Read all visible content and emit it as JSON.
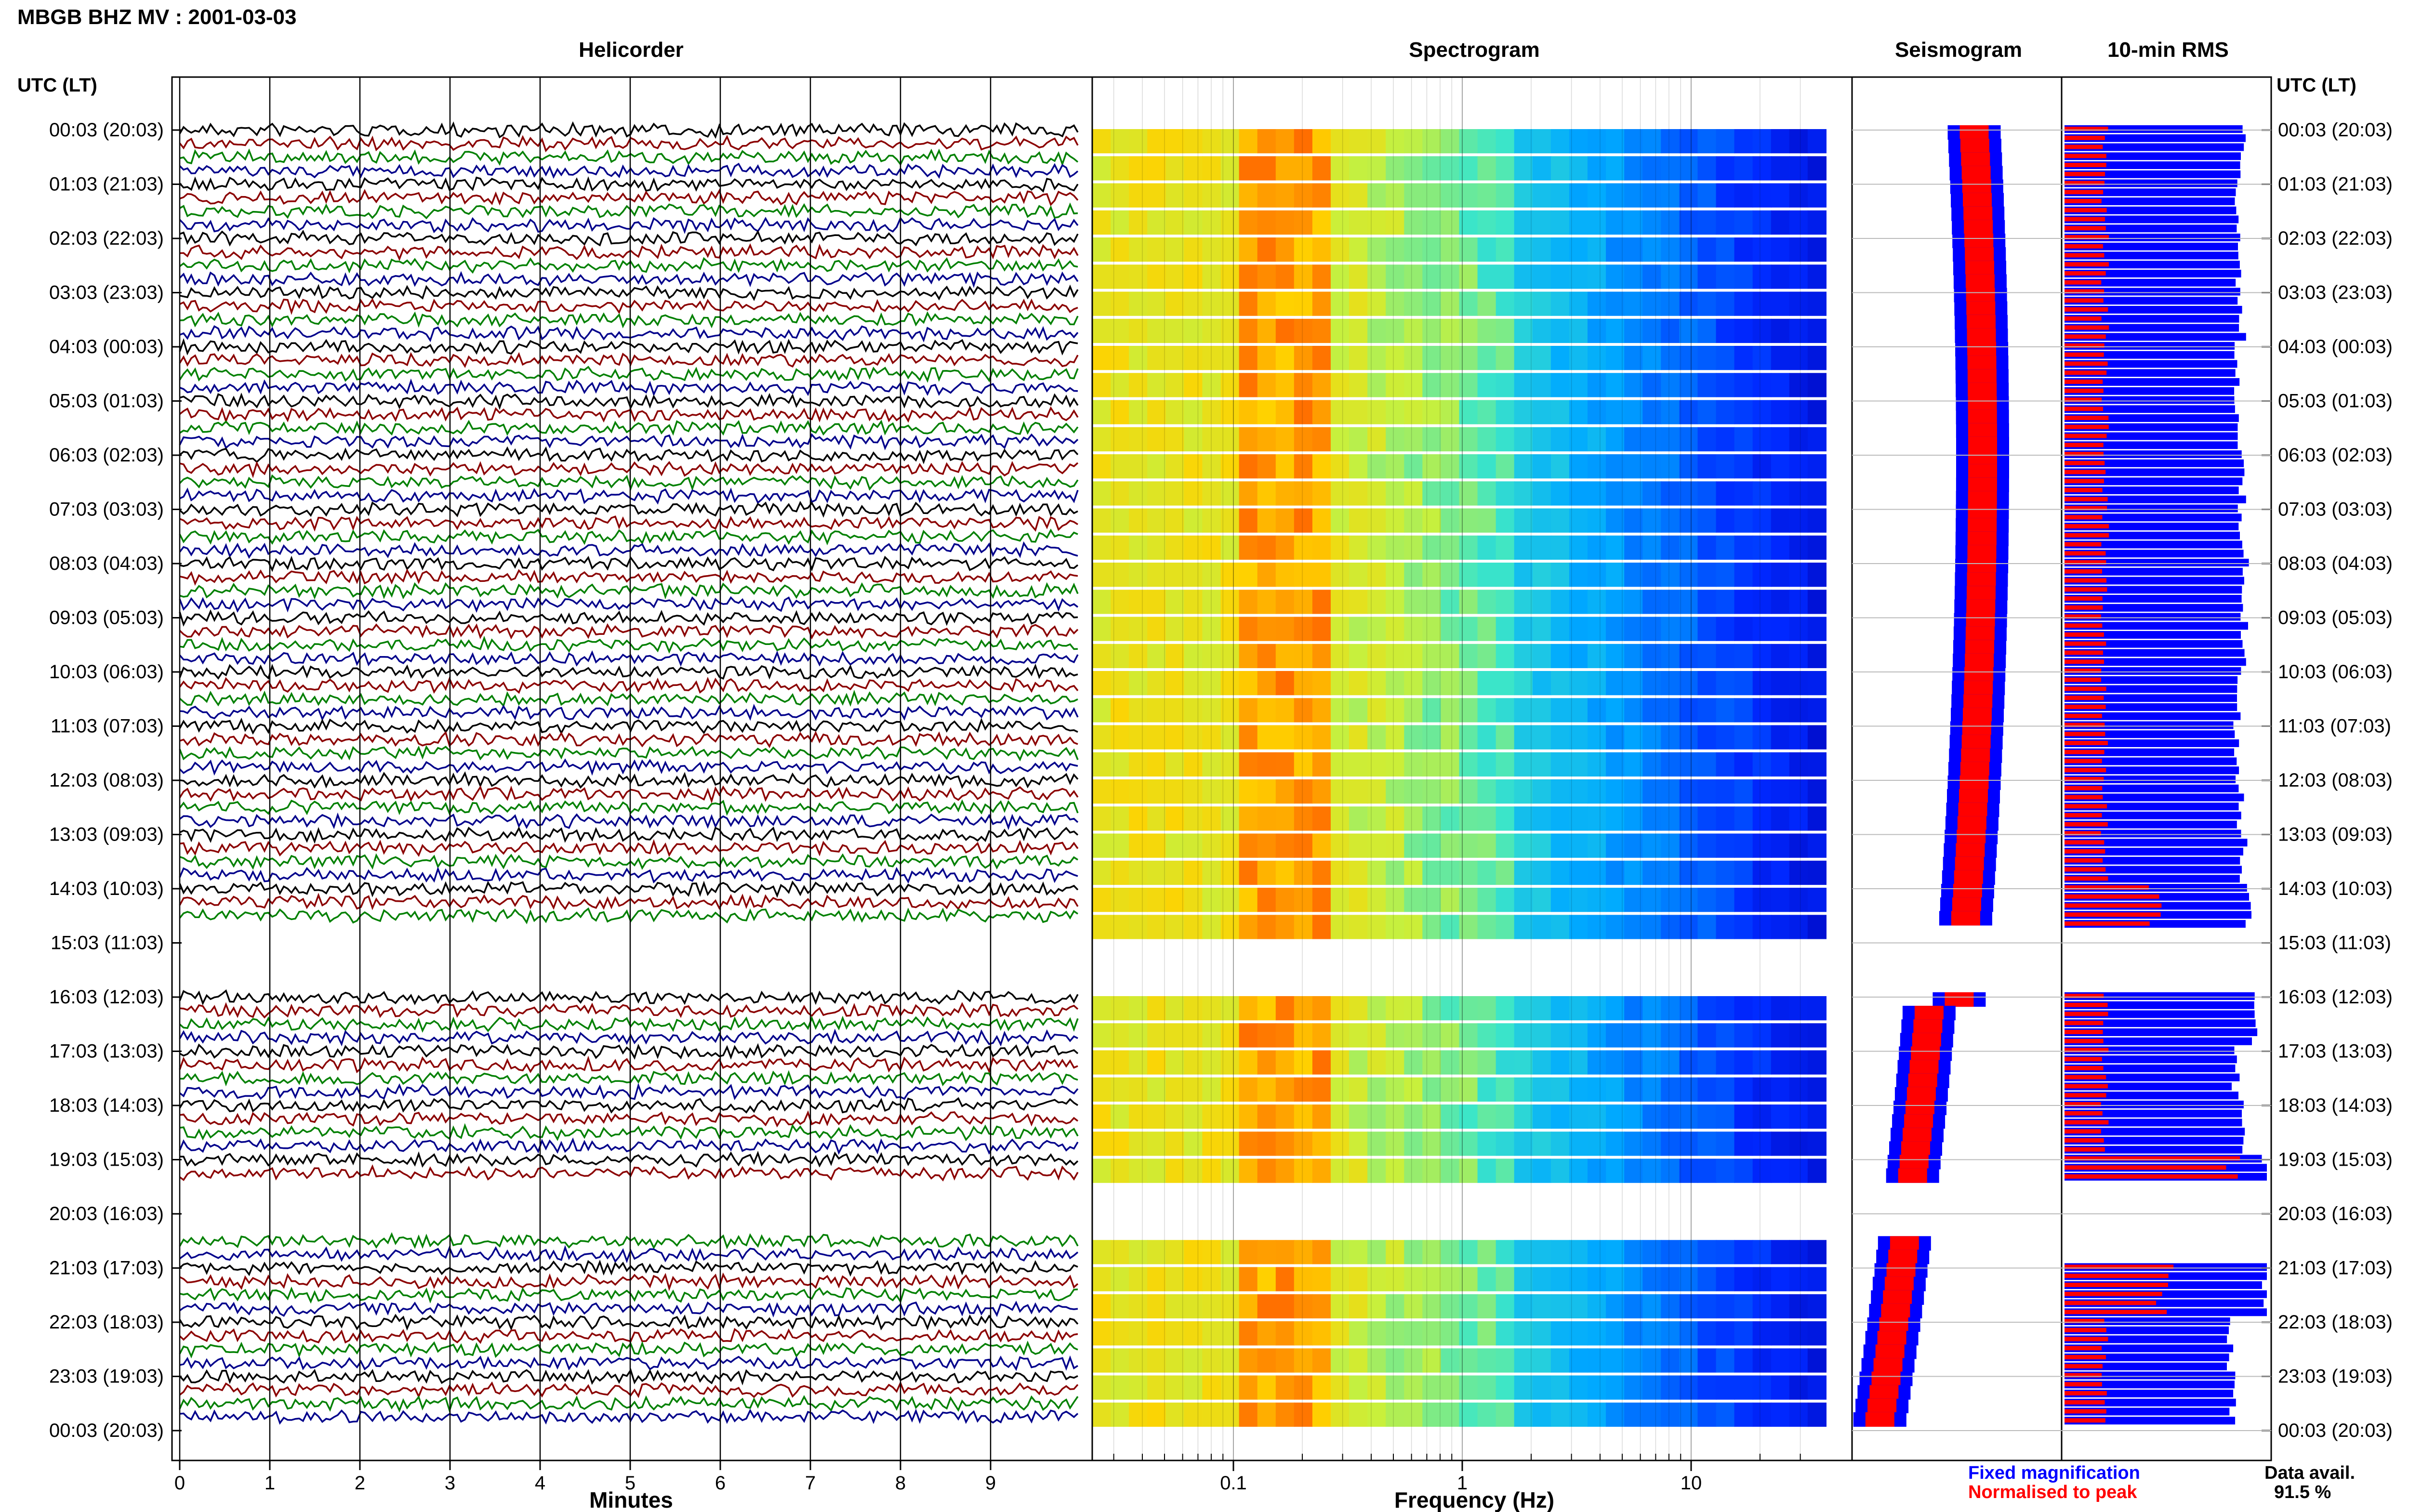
{
  "header": {
    "station_title": "MBGB BHZ MV : 2001-03-03",
    "left_axis_label": "UTC (LT)",
    "right_axis_label": "UTC (LT)"
  },
  "panels": {
    "helicorder": {
      "title": "Helicorder",
      "xlabel": "Minutes",
      "ticks": [
        "0",
        "1",
        "2",
        "3",
        "4",
        "5",
        "6",
        "7",
        "8",
        "9"
      ]
    },
    "spectrogram": {
      "title": "Spectrogram",
      "xlabel": "Frequency (Hz)",
      "ticks": [
        "0.1",
        "1",
        "10"
      ]
    },
    "seismogram": {
      "title": "Seismogram"
    },
    "rms": {
      "title": "10-min RMS"
    }
  },
  "legend": {
    "fixed": "Fixed magnification",
    "normalised": "Normalised to peak",
    "data_avail_label": "Data avail.",
    "data_avail_value": "91.5 %"
  },
  "colors": {
    "trace_cycle": [
      "#000000",
      "#8b0000",
      "#008000",
      "#00008b"
    ],
    "fixed_magnification": "#0000ff",
    "normalised_to_peak": "#ff0000"
  },
  "time_labels": [
    "00:03 (20:03)",
    "01:03 (21:03)",
    "02:03 (22:03)",
    "03:03 (23:03)",
    "04:03 (00:03)",
    "05:03 (01:03)",
    "06:03 (02:03)",
    "07:03 (03:03)",
    "08:03 (04:03)",
    "09:03 (05:03)",
    "10:03 (06:03)",
    "11:03 (07:03)",
    "12:03 (08:03)",
    "13:03 (09:03)",
    "14:03 (10:03)",
    "15:03 (11:03)",
    "16:03 (12:03)",
    "17:03 (13:03)",
    "18:03 (14:03)",
    "19:03 (15:03)",
    "20:03 (16:03)",
    "21:03 (17:03)",
    "22:03 (18:03)",
    "23:03 (19:03)",
    "00:03 (20:03)"
  ],
  "chart_data": {
    "type": "helicorder-spectrogram",
    "title": "MBGB BHZ MV : 2001-03-03",
    "helicorder": {
      "x_range_minutes": [
        0,
        10
      ],
      "y_range_hours": [
        0,
        24
      ]
    },
    "spectrogram": {
      "x_scale": "log",
      "x_range_hz": [
        0.025,
        40
      ]
    },
    "gaps_hours": [
      [
        14.75,
        16.0
      ],
      [
        19.5,
        20.5
      ]
    ],
    "data_availability_percent": 91.5,
    "rms_10min": {
      "fixed_magnification_hourly": [
        0.88,
        0.85,
        0.87,
        0.88,
        0.86,
        0.85,
        0.88,
        0.87,
        0.9,
        0.89,
        0.87,
        0.86,
        0.87,
        0.89,
        0.92,
        null,
        0.95,
        0.85,
        0.9,
        1.0,
        null,
        1.0,
        0.82,
        0.84
      ],
      "normalised_to_peak_hourly": [
        0.2,
        0.2,
        0.2,
        0.2,
        0.2,
        0.2,
        0.2,
        0.2,
        0.2,
        0.2,
        0.2,
        0.2,
        0.2,
        0.2,
        0.45,
        null,
        0.2,
        0.2,
        0.2,
        0.85,
        null,
        0.5,
        0.2,
        0.2
      ]
    }
  }
}
